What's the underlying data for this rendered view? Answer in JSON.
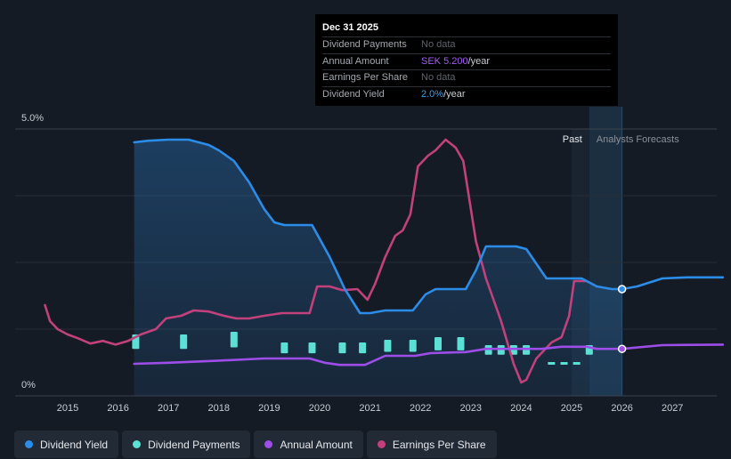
{
  "tooltip": {
    "date": "Dec 31 2025",
    "rows": [
      {
        "label": "Dividend Payments",
        "value": "No data",
        "unit": ""
      },
      {
        "label": "Annual Amount",
        "value": "SEK 5.200",
        "unit": "/year"
      },
      {
        "label": "Earnings Per Share",
        "value": "No data",
        "unit": ""
      },
      {
        "label": "Dividend Yield",
        "value": "2.0%",
        "unit": "/year"
      }
    ]
  },
  "legend": [
    {
      "label": "Dividend Yield",
      "color": "#2b8de8"
    },
    {
      "label": "Dividend Payments",
      "color": "#5ce0d6"
    },
    {
      "label": "Annual Amount",
      "color": "#9d4de8"
    },
    {
      "label": "Earnings Per Share",
      "color": "#c2417c"
    }
  ],
  "chart_data": {
    "type": "line",
    "title": "",
    "xlabel": "",
    "ylabel": "",
    "ylim": [
      0,
      5.0
    ],
    "y_tick_labels": [
      "5.0%",
      "0%"
    ],
    "x_ticks": [
      2015,
      2016,
      2017,
      2018,
      2019,
      2020,
      2021,
      2022,
      2023,
      2024,
      2025,
      2026,
      2027
    ],
    "xlim": [
      2014.45,
      2028.0
    ],
    "past_label": "Past",
    "forecast_label": "Analysts Forecasts",
    "forecast_start": 2025.35,
    "forecast_end": 2026.0,
    "highlight_date": 2026.0,
    "series": [
      {
        "name": "Dividend Yield",
        "color": "#2b8de8",
        "fill": true,
        "points": [
          [
            2016.32,
            4.75
          ],
          [
            2016.6,
            4.78
          ],
          [
            2017.0,
            4.8
          ],
          [
            2017.4,
            4.8
          ],
          [
            2017.8,
            4.7
          ],
          [
            2018.0,
            4.6
          ],
          [
            2018.3,
            4.4
          ],
          [
            2018.6,
            4.0
          ],
          [
            2018.9,
            3.5
          ],
          [
            2019.1,
            3.25
          ],
          [
            2019.3,
            3.2
          ],
          [
            2019.55,
            3.2
          ],
          [
            2019.85,
            3.2
          ],
          [
            2020.2,
            2.6
          ],
          [
            2020.5,
            2.0
          ],
          [
            2020.8,
            1.55
          ],
          [
            2021.0,
            1.55
          ],
          [
            2021.3,
            1.6
          ],
          [
            2021.6,
            1.6
          ],
          [
            2021.85,
            1.6
          ],
          [
            2022.1,
            1.9
          ],
          [
            2022.3,
            2.0
          ],
          [
            2022.6,
            2.0
          ],
          [
            2022.9,
            2.0
          ],
          [
            2023.1,
            2.35
          ],
          [
            2023.3,
            2.8
          ],
          [
            2023.6,
            2.8
          ],
          [
            2023.9,
            2.8
          ],
          [
            2024.1,
            2.75
          ],
          [
            2024.5,
            2.2
          ],
          [
            2024.8,
            2.2
          ],
          [
            2025.2,
            2.2
          ],
          [
            2025.5,
            2.05
          ],
          [
            2025.8,
            2.0
          ],
          [
            2026.0,
            2.0
          ],
          [
            2026.3,
            2.05
          ],
          [
            2026.8,
            2.2
          ],
          [
            2027.3,
            2.22
          ],
          [
            2028.0,
            2.22
          ]
        ]
      },
      {
        "name": "Annual Amount",
        "color": "#9d4de8",
        "points": [
          [
            2016.32,
            0.6
          ],
          [
            2017.0,
            0.62
          ],
          [
            2018.0,
            0.66
          ],
          [
            2018.9,
            0.7
          ],
          [
            2019.8,
            0.7
          ],
          [
            2020.1,
            0.62
          ],
          [
            2020.4,
            0.58
          ],
          [
            2020.9,
            0.58
          ],
          [
            2021.3,
            0.75
          ],
          [
            2021.9,
            0.75
          ],
          [
            2022.2,
            0.8
          ],
          [
            2022.9,
            0.82
          ],
          [
            2023.3,
            0.88
          ],
          [
            2023.9,
            0.88
          ],
          [
            2024.4,
            0.88
          ],
          [
            2024.8,
            0.92
          ],
          [
            2025.3,
            0.92
          ],
          [
            2025.5,
            0.88
          ],
          [
            2026.0,
            0.88
          ],
          [
            2026.8,
            0.95
          ],
          [
            2028.0,
            0.96
          ]
        ]
      },
      {
        "name": "Earnings Per Share",
        "color": "#c2417c",
        "points": [
          [
            2014.55,
            1.7
          ],
          [
            2014.65,
            1.4
          ],
          [
            2014.8,
            1.25
          ],
          [
            2015.0,
            1.15
          ],
          [
            2015.2,
            1.08
          ],
          [
            2015.45,
            0.98
          ],
          [
            2015.7,
            1.03
          ],
          [
            2015.95,
            0.96
          ],
          [
            2016.2,
            1.03
          ],
          [
            2016.45,
            1.15
          ],
          [
            2016.75,
            1.25
          ],
          [
            2016.95,
            1.45
          ],
          [
            2017.25,
            1.5
          ],
          [
            2017.5,
            1.6
          ],
          [
            2017.8,
            1.58
          ],
          [
            2018.1,
            1.5
          ],
          [
            2018.35,
            1.45
          ],
          [
            2018.6,
            1.45
          ],
          [
            2018.9,
            1.5
          ],
          [
            2019.25,
            1.55
          ],
          [
            2019.8,
            1.55
          ],
          [
            2019.95,
            2.05
          ],
          [
            2020.2,
            2.05
          ],
          [
            2020.45,
            1.98
          ],
          [
            2020.75,
            2.0
          ],
          [
            2020.95,
            1.8
          ],
          [
            2021.1,
            2.1
          ],
          [
            2021.3,
            2.6
          ],
          [
            2021.5,
            3.0
          ],
          [
            2021.65,
            3.1
          ],
          [
            2021.8,
            3.4
          ],
          [
            2021.95,
            4.3
          ],
          [
            2022.15,
            4.5
          ],
          [
            2022.3,
            4.6
          ],
          [
            2022.5,
            4.8
          ],
          [
            2022.7,
            4.65
          ],
          [
            2022.85,
            4.4
          ],
          [
            2022.95,
            3.8
          ],
          [
            2023.1,
            2.9
          ],
          [
            2023.3,
            2.2
          ],
          [
            2023.6,
            1.4
          ],
          [
            2023.85,
            0.6
          ],
          [
            2024.0,
            0.25
          ],
          [
            2024.1,
            0.3
          ],
          [
            2024.3,
            0.7
          ],
          [
            2024.6,
            1.0
          ],
          [
            2024.8,
            1.1
          ],
          [
            2024.95,
            1.5
          ],
          [
            2025.05,
            2.15
          ],
          [
            2025.3,
            2.15
          ]
        ]
      }
    ],
    "dividend_payments": {
      "name": "Dividend Payments",
      "color": "#5ce0d6",
      "past": [
        [
          2016.35,
          0.6
        ],
        [
          2017.3,
          0.6
        ],
        [
          2018.3,
          0.65
        ],
        [
          2019.3,
          0.45
        ],
        [
          2019.85,
          0.45
        ],
        [
          2020.45,
          0.45
        ],
        [
          2020.85,
          0.45
        ],
        [
          2021.35,
          0.5
        ],
        [
          2021.85,
          0.5
        ],
        [
          2022.35,
          0.55
        ],
        [
          2022.8,
          0.55
        ],
        [
          2023.35,
          0.4
        ],
        [
          2023.6,
          0.4
        ],
        [
          2023.85,
          0.4
        ],
        [
          2024.1,
          0.4
        ],
        [
          2025.35,
          0.4
        ]
      ],
      "forecast": [
        2024.6,
        2024.85,
        2025.1
      ]
    }
  }
}
